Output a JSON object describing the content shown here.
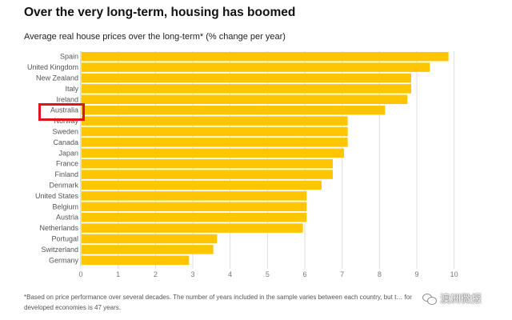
{
  "title": "Over the very long-term, housing has boomed",
  "subtitle": "Average real house prices over the long-term*  (% change per year)",
  "footnote": "*Based on price performance over several decades. The number of years included in the sample varies between each country, but t… for developed economies is 47 years.",
  "watermark": "澳洲微报",
  "highlighted_country": "Australia",
  "colors": {
    "bar": "#FFC600",
    "highlight": "#e0141e",
    "grid": "#dddddd"
  },
  "chart_data": {
    "type": "bar",
    "orientation": "horizontal",
    "title": "Over the very long-term, housing has boomed",
    "subtitle": "Average real house prices over the long-term*  (% change per year)",
    "xlabel": "",
    "ylabel": "",
    "xlim": [
      0,
      10.5
    ],
    "xticks": [
      0,
      1,
      2,
      3,
      4,
      5,
      6,
      7,
      8,
      9,
      10
    ],
    "grid": true,
    "categories": [
      "Spain",
      "United Kingdom",
      "New Zealand",
      "Italy",
      "Ireland",
      "Australia",
      "Norway",
      "Sweden",
      "Canada",
      "Japan",
      "France",
      "Finland",
      "Denmark",
      "United States",
      "Belgium",
      "Austria",
      "Netherlands",
      "Portugal",
      "Switzerland",
      "Germany"
    ],
    "values": [
      9.85,
      9.35,
      8.85,
      8.85,
      8.75,
      8.15,
      7.15,
      7.15,
      7.15,
      7.05,
      6.75,
      6.75,
      6.45,
      6.05,
      6.05,
      6.05,
      5.95,
      3.65,
      3.55,
      2.9
    ]
  }
}
